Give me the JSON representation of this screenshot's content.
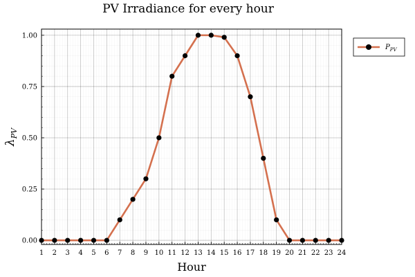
{
  "chart_data": {
    "type": "line",
    "title": "PV Irradiance for every hour",
    "xlabel": "Hour",
    "ylabel_main": "λ",
    "ylabel_sub": "PV",
    "xlim": [
      1,
      24
    ],
    "ylim": [
      -0.02,
      1.03
    ],
    "x_ticks": [
      1,
      2,
      3,
      4,
      5,
      6,
      7,
      8,
      9,
      10,
      11,
      12,
      13,
      14,
      15,
      16,
      17,
      18,
      19,
      20,
      21,
      22,
      23,
      24
    ],
    "y_ticks": [
      {
        "value": 0.0,
        "label": "0.00"
      },
      {
        "value": 0.25,
        "label": "0.25"
      },
      {
        "value": 0.5,
        "label": "0.50"
      },
      {
        "value": 0.75,
        "label": "0.75"
      },
      {
        "value": 1.0,
        "label": "1.00"
      }
    ],
    "grid": true,
    "minor_grid": true,
    "legend_position": "outside-top-right",
    "series": [
      {
        "legend_main": "P",
        "legend_sub": "PV",
        "line_color": "#d4704e",
        "marker_color": "#000000",
        "x": [
          1,
          2,
          3,
          4,
          5,
          6,
          7,
          8,
          9,
          10,
          11,
          12,
          13,
          14,
          15,
          16,
          17,
          18,
          19,
          20,
          21,
          22,
          23,
          24
        ],
        "values": [
          0,
          0,
          0,
          0,
          0,
          0,
          0.1,
          0.2,
          0.3,
          0.5,
          0.8,
          0.9,
          1.0,
          1.0,
          0.99,
          0.9,
          0.7,
          0.4,
          0.1,
          0,
          0,
          0,
          0,
          0
        ]
      }
    ]
  }
}
